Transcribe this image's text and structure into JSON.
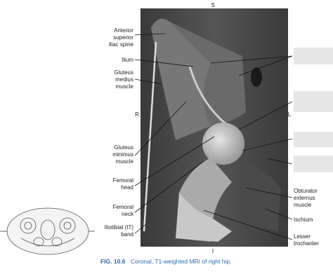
{
  "orientation": {
    "superior": "S",
    "inferior": "I",
    "right": "R",
    "left": "L"
  },
  "left_labels": [
    [
      "Anterior",
      "superior",
      "iliac spine"
    ],
    [
      "Ilium"
    ],
    [
      "Gluteus",
      "medius",
      "muscle"
    ],
    [
      "Gluteus",
      "minimus",
      "muscle"
    ],
    [
      "Femoral",
      "head"
    ],
    [
      "Femoral",
      "neck"
    ],
    [
      "Iliotibial (IT)",
      "band"
    ]
  ],
  "right_labels": [
    [
      "Obturator",
      "externus",
      "muscle"
    ],
    [
      "Ischium"
    ],
    [
      "Lesser",
      "trochanter"
    ]
  ],
  "caption": {
    "figure": "FIG. 10.6",
    "text": "Coronal, T1-weighted MRI of right hip."
  }
}
